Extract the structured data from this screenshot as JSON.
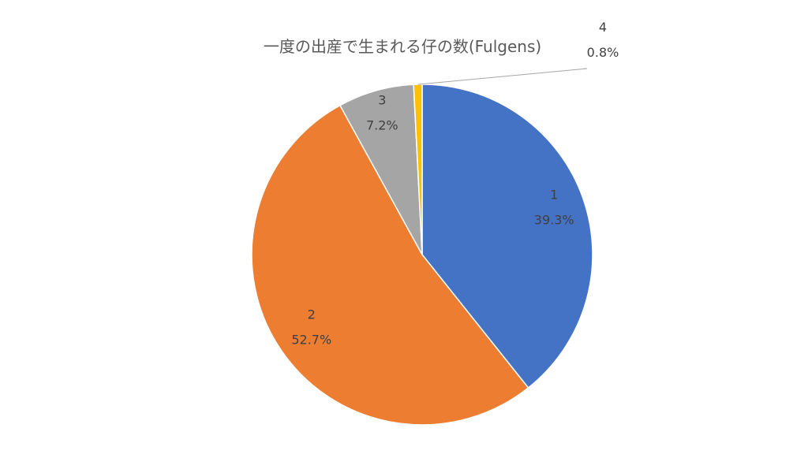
{
  "chart_data": {
    "type": "pie",
    "title": "一度の出産で生まれる仔の数(Fulgens)",
    "categories": [
      "1",
      "2",
      "3",
      "4"
    ],
    "values": [
      39.3,
      52.7,
      7.2,
      0.8
    ],
    "value_labels": [
      "39.3%",
      "52.7%",
      "7.2%",
      "0.8%"
    ],
    "colors": [
      "#4472C4",
      "#ED7D31",
      "#A5A5A5",
      "#FFC000"
    ],
    "start_angle": "12 o'clock",
    "direction": "clockwise",
    "legend": "none",
    "data_labels": "category and percentage"
  }
}
